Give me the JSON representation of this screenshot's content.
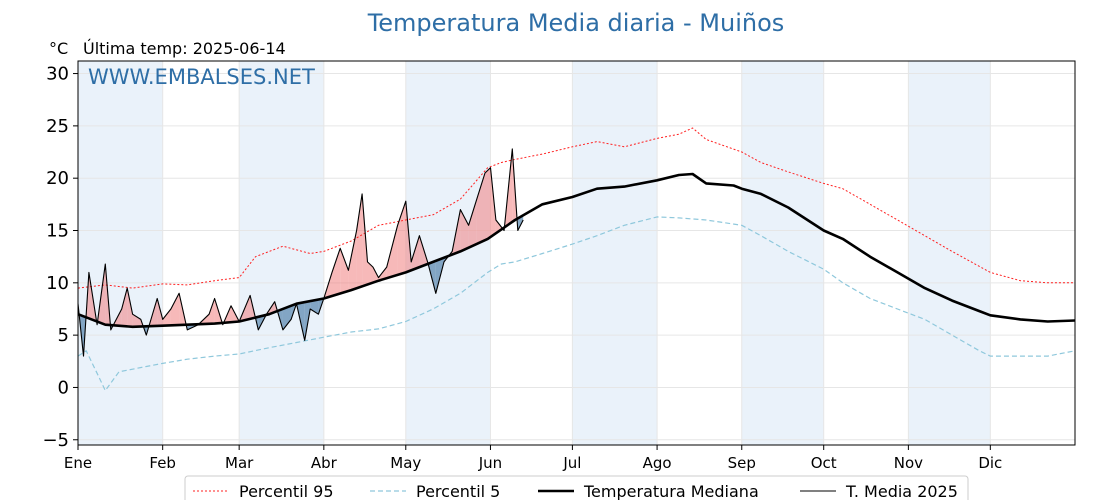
{
  "header": {
    "title": "Temperatura Media diaria - Muiños",
    "unit": "°C",
    "last_temp": "Última temp: 2025-06-14",
    "watermark": "WWW.EMBALSES.NET"
  },
  "colors": {
    "p95": "#ff2020",
    "p5": "#8fc8dc",
    "median": "#000000",
    "media2025": "#000000",
    "fill_above": "#f08080",
    "fill_below": "#5585ac",
    "band": "#eaf2fa",
    "title": "#2e6ea6"
  },
  "chart_data": {
    "type": "line",
    "title": "Temperatura Media diaria - Muiños",
    "ylabel": "°C",
    "ylim": [
      -5.5,
      31.2
    ],
    "xlim": [
      0,
      365
    ],
    "yticks": [
      -5,
      0,
      5,
      10,
      15,
      20,
      25,
      30
    ],
    "ytick_labels": [
      "−5",
      "0",
      "5",
      "10",
      "15",
      "20",
      "25",
      "30"
    ],
    "months": [
      {
        "label": "Ene",
        "day": 0
      },
      {
        "label": "Feb",
        "day": 31
      },
      {
        "label": "Mar",
        "day": 59
      },
      {
        "label": "Abr",
        "day": 90
      },
      {
        "label": "May",
        "day": 120
      },
      {
        "label": "Jun",
        "day": 151
      },
      {
        "label": "Jul",
        "day": 181
      },
      {
        "label": "Ago",
        "day": 212
      },
      {
        "label": "Sep",
        "day": 243
      },
      {
        "label": "Oct",
        "day": 273
      },
      {
        "label": "Nov",
        "day": 304
      },
      {
        "label": "Dic",
        "day": 334
      }
    ],
    "shaded_months": [
      [
        0,
        31
      ],
      [
        59,
        90
      ],
      [
        120,
        151
      ],
      [
        181,
        212
      ],
      [
        243,
        273
      ],
      [
        304,
        334
      ]
    ],
    "grid": true,
    "legend_position": "bottom",
    "series": [
      {
        "name": "Percentil 95",
        "style": "dotted",
        "points": [
          [
            0,
            9.5
          ],
          [
            10,
            9.8
          ],
          [
            20,
            9.5
          ],
          [
            31,
            9.9
          ],
          [
            40,
            9.8
          ],
          [
            50,
            10.2
          ],
          [
            59,
            10.5
          ],
          [
            65,
            12.5
          ],
          [
            75,
            13.5
          ],
          [
            85,
            12.8
          ],
          [
            90,
            13
          ],
          [
            100,
            14
          ],
          [
            110,
            15.5
          ],
          [
            120,
            16
          ],
          [
            130,
            16.5
          ],
          [
            140,
            18
          ],
          [
            145,
            19.5
          ],
          [
            150,
            21
          ],
          [
            155,
            21.5
          ],
          [
            160,
            21.8
          ],
          [
            170,
            22.3
          ],
          [
            181,
            23
          ],
          [
            190,
            23.5
          ],
          [
            200,
            23
          ],
          [
            212,
            23.8
          ],
          [
            220,
            24.2
          ],
          [
            225,
            24.8
          ],
          [
            230,
            23.7
          ],
          [
            243,
            22.5
          ],
          [
            250,
            21.5
          ],
          [
            260,
            20.6
          ],
          [
            273,
            19.5
          ],
          [
            280,
            19
          ],
          [
            290,
            17.5
          ],
          [
            300,
            16
          ],
          [
            310,
            14.5
          ],
          [
            320,
            13
          ],
          [
            334,
            11
          ],
          [
            345,
            10.2
          ],
          [
            355,
            10
          ],
          [
            365,
            10
          ]
        ]
      },
      {
        "name": "Percentil 5",
        "style": "dashed",
        "points": [
          [
            0,
            3
          ],
          [
            3,
            3.5
          ],
          [
            8,
            0.8
          ],
          [
            10,
            -0.3
          ],
          [
            15,
            1.5
          ],
          [
            25,
            2
          ],
          [
            31,
            2.3
          ],
          [
            40,
            2.7
          ],
          [
            50,
            3
          ],
          [
            59,
            3.2
          ],
          [
            70,
            3.8
          ],
          [
            80,
            4.3
          ],
          [
            90,
            4.8
          ],
          [
            100,
            5.3
          ],
          [
            110,
            5.6
          ],
          [
            120,
            6.3
          ],
          [
            130,
            7.5
          ],
          [
            140,
            9
          ],
          [
            150,
            11
          ],
          [
            155,
            11.8
          ],
          [
            160,
            12
          ],
          [
            170,
            12.8
          ],
          [
            181,
            13.7
          ],
          [
            190,
            14.5
          ],
          [
            200,
            15.5
          ],
          [
            212,
            16.3
          ],
          [
            220,
            16.2
          ],
          [
            230,
            16
          ],
          [
            243,
            15.5
          ],
          [
            250,
            14.5
          ],
          [
            260,
            13
          ],
          [
            273,
            11.3
          ],
          [
            280,
            10
          ],
          [
            290,
            8.5
          ],
          [
            300,
            7.5
          ],
          [
            310,
            6.5
          ],
          [
            320,
            5
          ],
          [
            330,
            3.5
          ],
          [
            334,
            3
          ],
          [
            345,
            3
          ],
          [
            355,
            3
          ],
          [
            365,
            3.5
          ]
        ]
      },
      {
        "name": "Temperatura Mediana",
        "style": "solid-bold",
        "points": [
          [
            0,
            7
          ],
          [
            10,
            6
          ],
          [
            20,
            5.8
          ],
          [
            31,
            5.9
          ],
          [
            40,
            6
          ],
          [
            50,
            6.1
          ],
          [
            59,
            6.3
          ],
          [
            70,
            7
          ],
          [
            80,
            8
          ],
          [
            90,
            8.5
          ],
          [
            100,
            9.3
          ],
          [
            110,
            10.2
          ],
          [
            120,
            11
          ],
          [
            130,
            12
          ],
          [
            140,
            13
          ],
          [
            150,
            14.2
          ],
          [
            160,
            16
          ],
          [
            170,
            17.5
          ],
          [
            181,
            18.2
          ],
          [
            190,
            19
          ],
          [
            200,
            19.2
          ],
          [
            212,
            19.8
          ],
          [
            220,
            20.3
          ],
          [
            225,
            20.4
          ],
          [
            230,
            19.5
          ],
          [
            240,
            19.3
          ],
          [
            243,
            19
          ],
          [
            250,
            18.5
          ],
          [
            260,
            17.2
          ],
          [
            273,
            15
          ],
          [
            280,
            14.2
          ],
          [
            290,
            12.5
          ],
          [
            300,
            11
          ],
          [
            310,
            9.5
          ],
          [
            320,
            8.3
          ],
          [
            330,
            7.3
          ],
          [
            334,
            6.9
          ],
          [
            345,
            6.5
          ],
          [
            355,
            6.3
          ],
          [
            365,
            6.4
          ]
        ]
      },
      {
        "name": "T. Media 2025",
        "style": "solid-thin",
        "points": [
          [
            0,
            8
          ],
          [
            2,
            3
          ],
          [
            4,
            11
          ],
          [
            7,
            6
          ],
          [
            10,
            11.8
          ],
          [
            12,
            5.5
          ],
          [
            16,
            7.5
          ],
          [
            18,
            9.5
          ],
          [
            20,
            7
          ],
          [
            23,
            6.5
          ],
          [
            25,
            5
          ],
          [
            29,
            8.5
          ],
          [
            31,
            6.5
          ],
          [
            34,
            7.5
          ],
          [
            37,
            9
          ],
          [
            40,
            5.5
          ],
          [
            44,
            6
          ],
          [
            48,
            7
          ],
          [
            50,
            8.5
          ],
          [
            53,
            6
          ],
          [
            56,
            7.8
          ],
          [
            59,
            6.3
          ],
          [
            63,
            8.8
          ],
          [
            66,
            5.5
          ],
          [
            69,
            7
          ],
          [
            72,
            8.2
          ],
          [
            75,
            5.5
          ],
          [
            78,
            6.5
          ],
          [
            80,
            8
          ],
          [
            83,
            4.5
          ],
          [
            85,
            7.5
          ],
          [
            88,
            7
          ],
          [
            90,
            8.5
          ],
          [
            93,
            11
          ],
          [
            96,
            13.3
          ],
          [
            99,
            11.2
          ],
          [
            102,
            15
          ],
          [
            104,
            18.5
          ],
          [
            106,
            12
          ],
          [
            108,
            11.5
          ],
          [
            110,
            10.5
          ],
          [
            113,
            11.5
          ],
          [
            117,
            15.5
          ],
          [
            120,
            17.8
          ],
          [
            122,
            12
          ],
          [
            125,
            14.5
          ],
          [
            128,
            12
          ],
          [
            131,
            9
          ],
          [
            134,
            12
          ],
          [
            137,
            13
          ],
          [
            140,
            17
          ],
          [
            143,
            15.5
          ],
          [
            146,
            18
          ],
          [
            149,
            20.5
          ],
          [
            151,
            21
          ],
          [
            153,
            16
          ],
          [
            156,
            15
          ],
          [
            159,
            22.8
          ],
          [
            161,
            15
          ],
          [
            163,
            16
          ]
        ]
      }
    ]
  },
  "legend": {
    "items": [
      {
        "label": "Percentil 95",
        "style": "dotted"
      },
      {
        "label": "Percentil 5",
        "style": "dashed"
      },
      {
        "label": "Temperatura Mediana",
        "style": "solid-bold"
      },
      {
        "label": "T. Media 2025",
        "style": "solid-thin"
      }
    ]
  }
}
